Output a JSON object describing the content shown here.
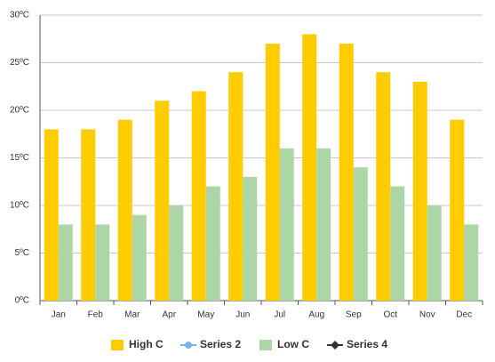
{
  "chart_data": {
    "type": "bar",
    "categories": [
      "Jan",
      "Feb",
      "Mar",
      "Apr",
      "May",
      "Jun",
      "Jul",
      "Aug",
      "Sep",
      "Oct",
      "Nov",
      "Dec"
    ],
    "series": [
      {
        "name": "High C",
        "color": "#ffcc00",
        "type": "bar",
        "values": [
          18,
          18,
          19,
          21,
          22,
          24,
          27,
          28,
          27,
          24,
          23,
          19
        ]
      },
      {
        "name": "Series 2",
        "color": "#7cb5ec",
        "type": "line",
        "marker": "circle",
        "values": [
          null,
          null,
          null,
          null,
          null,
          null,
          null,
          null,
          null,
          null,
          null,
          null
        ]
      },
      {
        "name": "Low C",
        "color": "#acd6a5",
        "type": "bar",
        "values": [
          8,
          8,
          9,
          10,
          12,
          13,
          16,
          16,
          14,
          12,
          10,
          8
        ]
      },
      {
        "name": "Series 4",
        "color": "#333333",
        "type": "line",
        "marker": "diamond",
        "values": [
          null,
          null,
          null,
          null,
          null,
          null,
          null,
          null,
          null,
          null,
          null,
          null
        ]
      }
    ],
    "ylim": [
      0,
      30
    ],
    "yticks": [
      {
        "value": 0,
        "label": "0ºC"
      },
      {
        "value": 5,
        "label": "5ºC"
      },
      {
        "value": 10,
        "label": "10ºC"
      },
      {
        "value": 15,
        "label": "15ºC"
      },
      {
        "value": 20,
        "label": "20ºC"
      },
      {
        "value": 25,
        "label": "25ºC"
      },
      {
        "value": 30,
        "label": "30ºC"
      }
    ],
    "grid": true,
    "legend": "bottom"
  }
}
